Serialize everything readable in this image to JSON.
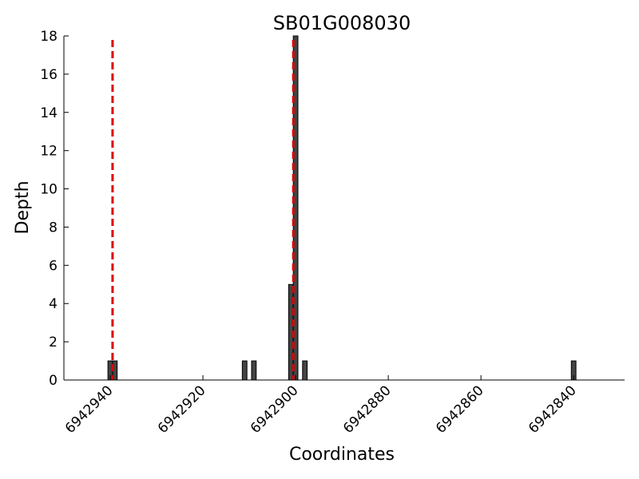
{
  "chart_data": {
    "type": "bar",
    "title": "SB01G008030",
    "xlabel": "Coordinates",
    "ylabel": "Depth",
    "xlim": [
      6942950,
      6942829
    ],
    "x_reversed": true,
    "ylim": [
      0,
      18
    ],
    "x_ticks": [
      6942940,
      6942920,
      6942900,
      6942880,
      6942860,
      6942840
    ],
    "x_tick_labels": [
      "6942940",
      "6942920",
      "6942900",
      "6942880",
      "6942860",
      "6942840"
    ],
    "y_ticks": [
      0,
      2,
      4,
      6,
      8,
      10,
      12,
      14,
      16,
      18
    ],
    "y_tick_labels": [
      "0",
      "2",
      "4",
      "6",
      "8",
      "10",
      "12",
      "14",
      "16",
      "18"
    ],
    "grid": false,
    "bar_color": "#444444",
    "series": [
      {
        "x": [
          6942940,
          6942939,
          6942911,
          6942909,
          6942901,
          6942900,
          6942898,
          6942840
        ],
        "values": [
          1,
          1,
          1,
          1,
          5,
          18,
          1,
          1
        ]
      }
    ],
    "vlines": [
      {
        "x": 6942939.5,
        "color": "#dd0000",
        "style": "dashed"
      },
      {
        "x": 6942900.5,
        "color": "#dd0000",
        "style": "dashed"
      }
    ]
  }
}
